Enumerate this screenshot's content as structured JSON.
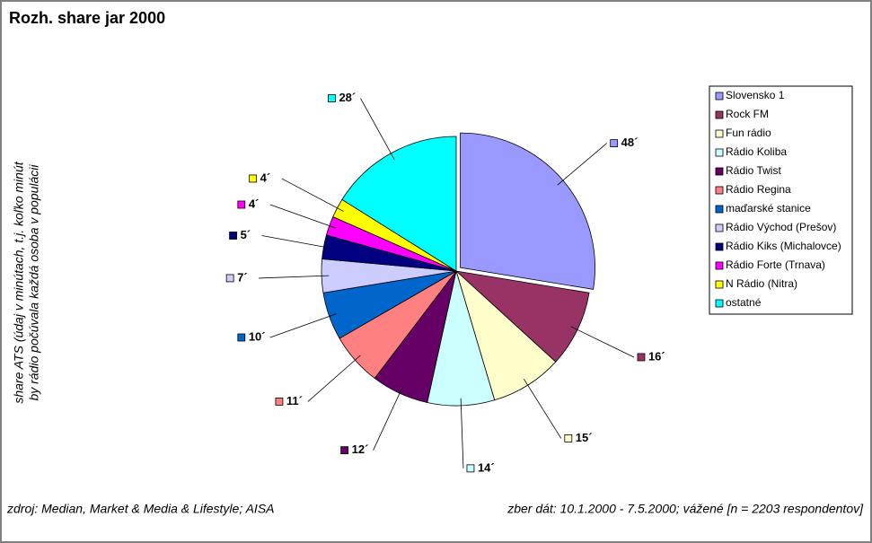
{
  "chart_data": {
    "type": "pie",
    "title": "Rozh. share jar 2000",
    "ylabel": [
      "share ATS (údaj v minútach, t.j. koľko minút",
      "by rádio počúvala každá osoba v populácii"
    ],
    "annotations": [
      "zdroj: Median, Market & Media & Lifestyle; AISA",
      "zber dát: 10.1.2000 - 7.5.2000; vážené [n = 2203 respondentov]"
    ],
    "categories": [
      "Slovensko 1",
      "Rock FM",
      "Fun rádio",
      "Rádio Koliba",
      "Rádio Twist",
      "Rádio Regina",
      "maďarské stanice",
      "Rádio Východ (Prešov)",
      "Rádio Kiks (Michalovce)",
      "Rádio Forte (Trnava)",
      "N Rádio (Nitra)",
      "ostatné"
    ],
    "values": [
      48,
      16,
      15,
      14,
      12,
      11,
      10,
      7,
      5,
      4,
      4,
      28
    ],
    "value_labels": [
      "48´",
      "16´",
      "15´",
      "14´",
      "12´",
      "11´",
      "10´",
      "7´",
      "5´",
      "4´",
      "4´",
      "28´"
    ],
    "colors": [
      "#9999ff",
      "#993366",
      "#ffffcc",
      "#ccffff",
      "#660066",
      "#ff8080",
      "#0066cc",
      "#ccccff",
      "#000080",
      "#ff00ff",
      "#ffff00",
      "#00ffff"
    ],
    "legend": "right"
  }
}
